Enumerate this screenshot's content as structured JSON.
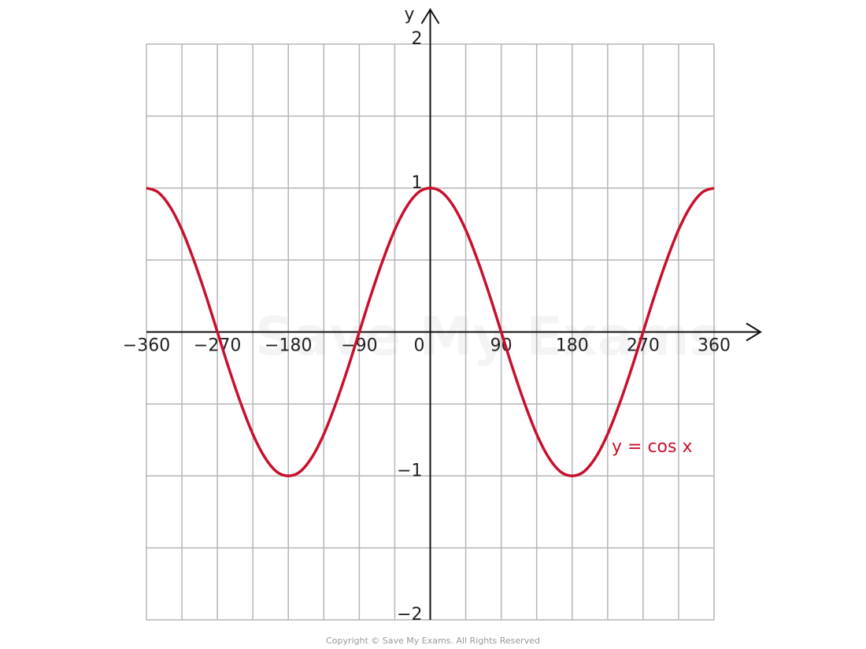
{
  "chart_data": {
    "type": "line",
    "axis_label_y": "y",
    "watermark": "Save My Exams",
    "copyright": "Copyright © Save My Exams. All Rights Reserved",
    "x": [
      -360,
      -345,
      -330,
      -315,
      -300,
      -285,
      -270,
      -255,
      -240,
      -225,
      -210,
      -195,
      -180,
      -165,
      -150,
      -135,
      -120,
      -105,
      -90,
      -75,
      -60,
      -45,
      -30,
      -15,
      0,
      15,
      30,
      45,
      60,
      75,
      90,
      105,
      120,
      135,
      150,
      165,
      180,
      195,
      210,
      225,
      240,
      255,
      270,
      285,
      300,
      315,
      330,
      345,
      360
    ],
    "series": [
      {
        "name": "y = cos x",
        "color": "#c8102e",
        "values": [
          1,
          0.97,
          0.87,
          0.71,
          0.5,
          0.26,
          0,
          -0.26,
          -0.5,
          -0.71,
          -0.87,
          -0.97,
          -1,
          -0.97,
          -0.87,
          -0.71,
          -0.5,
          -0.26,
          0,
          0.26,
          0.5,
          0.71,
          0.87,
          0.97,
          1,
          0.97,
          0.87,
          0.71,
          0.5,
          0.26,
          0,
          -0.26,
          -0.5,
          -0.71,
          -0.87,
          -0.97,
          -1,
          -0.97,
          -0.87,
          -0.71,
          -0.5,
          -0.26,
          0,
          0.26,
          0.5,
          0.71,
          0.87,
          0.97,
          1
        ]
      }
    ],
    "xlim": [
      -360,
      360
    ],
    "ylim": [
      -2,
      2
    ],
    "xticks": [
      {
        "value": -360,
        "label": "−360"
      },
      {
        "value": -270,
        "label": "−270"
      },
      {
        "value": -180,
        "label": "−180"
      },
      {
        "value": -90,
        "label": "−90"
      },
      0,
      90,
      180,
      270,
      360
    ],
    "yticks": [
      {
        "value": -2,
        "label": "−2"
      },
      {
        "value": -1,
        "label": "−1"
      },
      1,
      2
    ],
    "xgrid": [
      -360,
      -315,
      -270,
      -225,
      -180,
      -135,
      -90,
      -45,
      0,
      45,
      90,
      135,
      180,
      225,
      270,
      315,
      360
    ],
    "ygrid": [
      -2,
      -1.5,
      -1,
      -0.5,
      0,
      0.5,
      1,
      1.5,
      2
    ],
    "grid": true
  }
}
